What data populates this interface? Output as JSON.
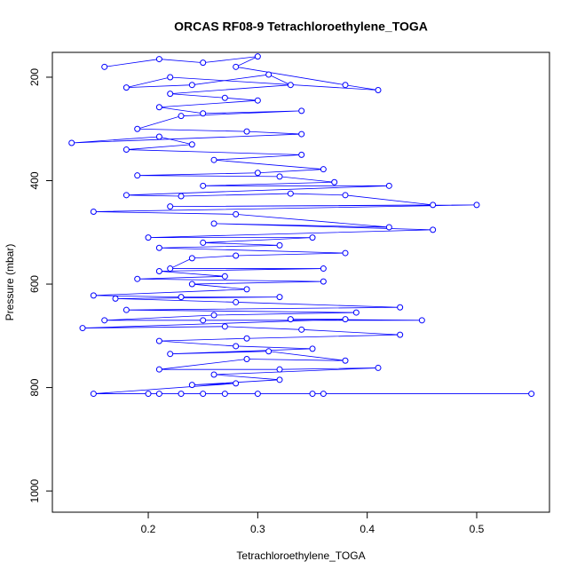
{
  "chart_data": {
    "type": "line",
    "title": "ORCAS RF08-9 Tetrachloroethylene_TOGA",
    "x_label": "Tetrachloroethylene_TOGA",
    "y_label": "Pressure (mbar)",
    "color": "#0000ff",
    "markers": true,
    "grid": false,
    "xlim": [
      0.1124,
      0.5665
    ],
    "ylim": [
      1041,
      152
    ],
    "xticks": [
      0.2,
      0.3,
      0.4,
      0.5
    ],
    "yticks": [
      200,
      400,
      600,
      800,
      1000
    ],
    "x": [
      0.16,
      0.21,
      0.25,
      0.3,
      0.28,
      0.38,
      0.41,
      0.22,
      0.18,
      0.24,
      0.31,
      0.33,
      0.22,
      0.27,
      0.3,
      0.21,
      0.25,
      0.34,
      0.23,
      0.19,
      0.29,
      0.34,
      0.13,
      0.21,
      0.24,
      0.18,
      0.34,
      0.26,
      0.36,
      0.3,
      0.19,
      0.32,
      0.37,
      0.25,
      0.42,
      0.18,
      0.23,
      0.33,
      0.38,
      0.46,
      0.22,
      0.5,
      0.15,
      0.28,
      0.42,
      0.26,
      0.46,
      0.2,
      0.35,
      0.25,
      0.32,
      0.21,
      0.38,
      0.28,
      0.24,
      0.22,
      0.36,
      0.21,
      0.27,
      0.19,
      0.36,
      0.24,
      0.29,
      0.15,
      0.23,
      0.32,
      0.17,
      0.28,
      0.43,
      0.18,
      0.39,
      0.26,
      0.16,
      0.25,
      0.45,
      0.33,
      0.38,
      0.14,
      0.27,
      0.34,
      0.43,
      0.29,
      0.21,
      0.28,
      0.35,
      0.22,
      0.31,
      0.38,
      0.29,
      0.21,
      0.32,
      0.41,
      0.26,
      0.32,
      0.24,
      0.28,
      0.15,
      0.2,
      0.23,
      0.27,
      0.35,
      0.55,
      0.3,
      0.36,
      0.25,
      0.21
    ],
    "values": [
      180,
      165,
      172,
      160,
      180,
      215,
      225,
      200,
      220,
      215,
      195,
      215,
      232,
      240,
      245,
      258,
      270,
      265,
      275,
      300,
      305,
      310,
      327,
      315,
      330,
      340,
      350,
      360,
      378,
      385,
      390,
      392,
      403,
      410,
      410,
      428,
      430,
      425,
      428,
      447,
      450,
      447,
      460,
      465,
      490,
      483,
      495,
      510,
      510,
      520,
      525,
      530,
      540,
      545,
      550,
      570,
      570,
      575,
      585,
      590,
      595,
      600,
      610,
      622,
      625,
      625,
      628,
      635,
      645,
      650,
      655,
      660,
      670,
      670,
      670,
      668,
      668,
      685,
      682,
      688,
      698,
      705,
      710,
      720,
      725,
      735,
      730,
      748,
      745,
      765,
      765,
      762,
      775,
      785,
      795,
      792,
      812,
      812,
      812,
      812,
      812,
      812,
      812,
      812,
      812,
      812
    ]
  }
}
